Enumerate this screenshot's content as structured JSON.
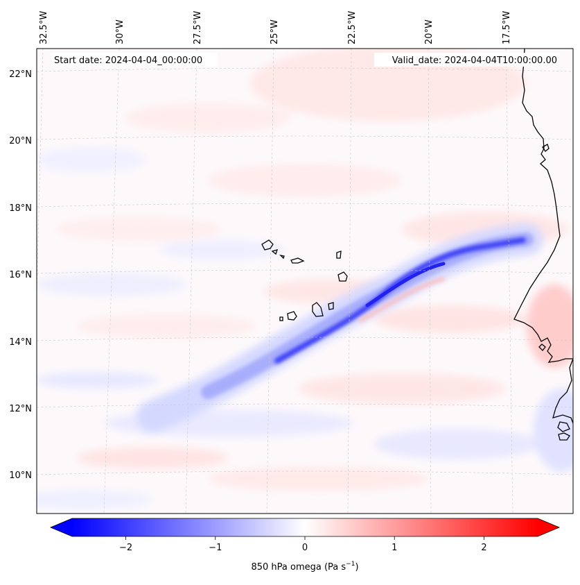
{
  "map": {
    "start_date": "Start date: 2024-04-04_00:00:00",
    "valid_date": "Valid_date: 2024-04-04T10:00:00.00",
    "lon_labels": [
      "32.5°W",
      "30°W",
      "27.5°W",
      "25°W",
      "22.5°W",
      "20°W",
      "17.5°W"
    ],
    "lat_labels": [
      "22°N",
      "20°N",
      "18°N",
      "16°N",
      "14°N",
      "12°N",
      "10°N"
    ]
  },
  "colorbar": {
    "label_text": "850 hPa omega (Pa s",
    "label_exponent": "−1",
    "label_close": ")",
    "ticks": [
      "−2",
      "−1",
      "0",
      "1",
      "2"
    ],
    "min": -2.6,
    "max": 2.6,
    "colors": {
      "negative": "#0000ff",
      "neutral": "#ffffff",
      "positive": "#ff0000"
    }
  }
}
